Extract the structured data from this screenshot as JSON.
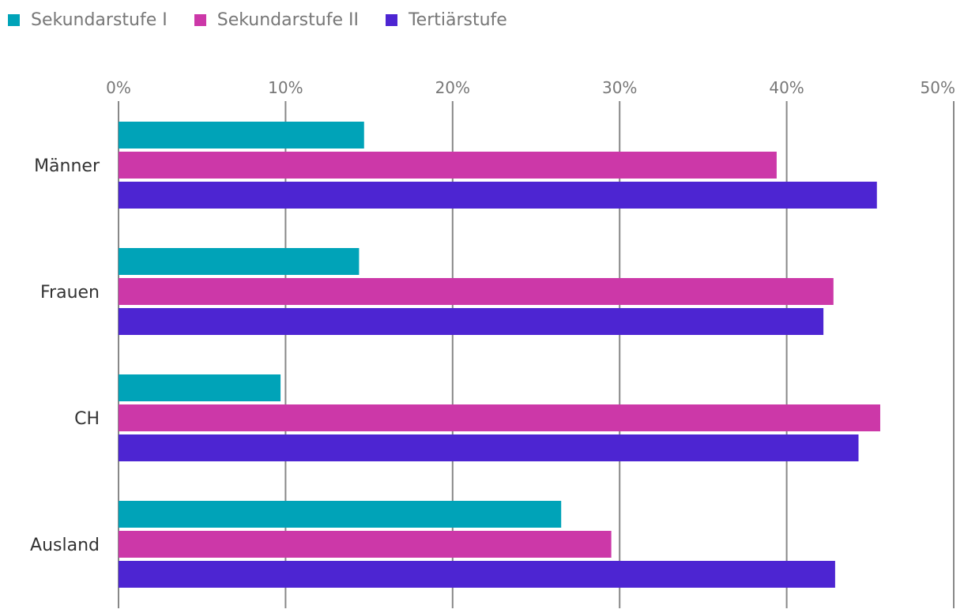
{
  "chart_data": {
    "type": "bar",
    "orientation": "horizontal",
    "title": "",
    "xlabel": "",
    "ylabel": "",
    "xlim": [
      0,
      50
    ],
    "ticks": [
      0,
      10,
      20,
      30,
      40,
      50
    ],
    "tick_labels": [
      "0%",
      "10%",
      "20%",
      "30%",
      "40%",
      "50%"
    ],
    "grid": true,
    "legend_position": "top-left",
    "categories": [
      "Männer",
      "Frauen",
      "CH",
      "Ausland"
    ],
    "series": [
      {
        "name": "Sekundarstufe I",
        "color": "#00a3b8",
        "values": [
          14.7,
          14.4,
          9.7,
          26.5
        ]
      },
      {
        "name": "Sekundarstufe II",
        "color": "#cc38a8",
        "values": [
          39.4,
          42.8,
          45.6,
          29.5
        ]
      },
      {
        "name": "Tertiärstufe",
        "color": "#4d25d2",
        "values": [
          45.4,
          42.2,
          44.3,
          42.9
        ]
      }
    ]
  }
}
